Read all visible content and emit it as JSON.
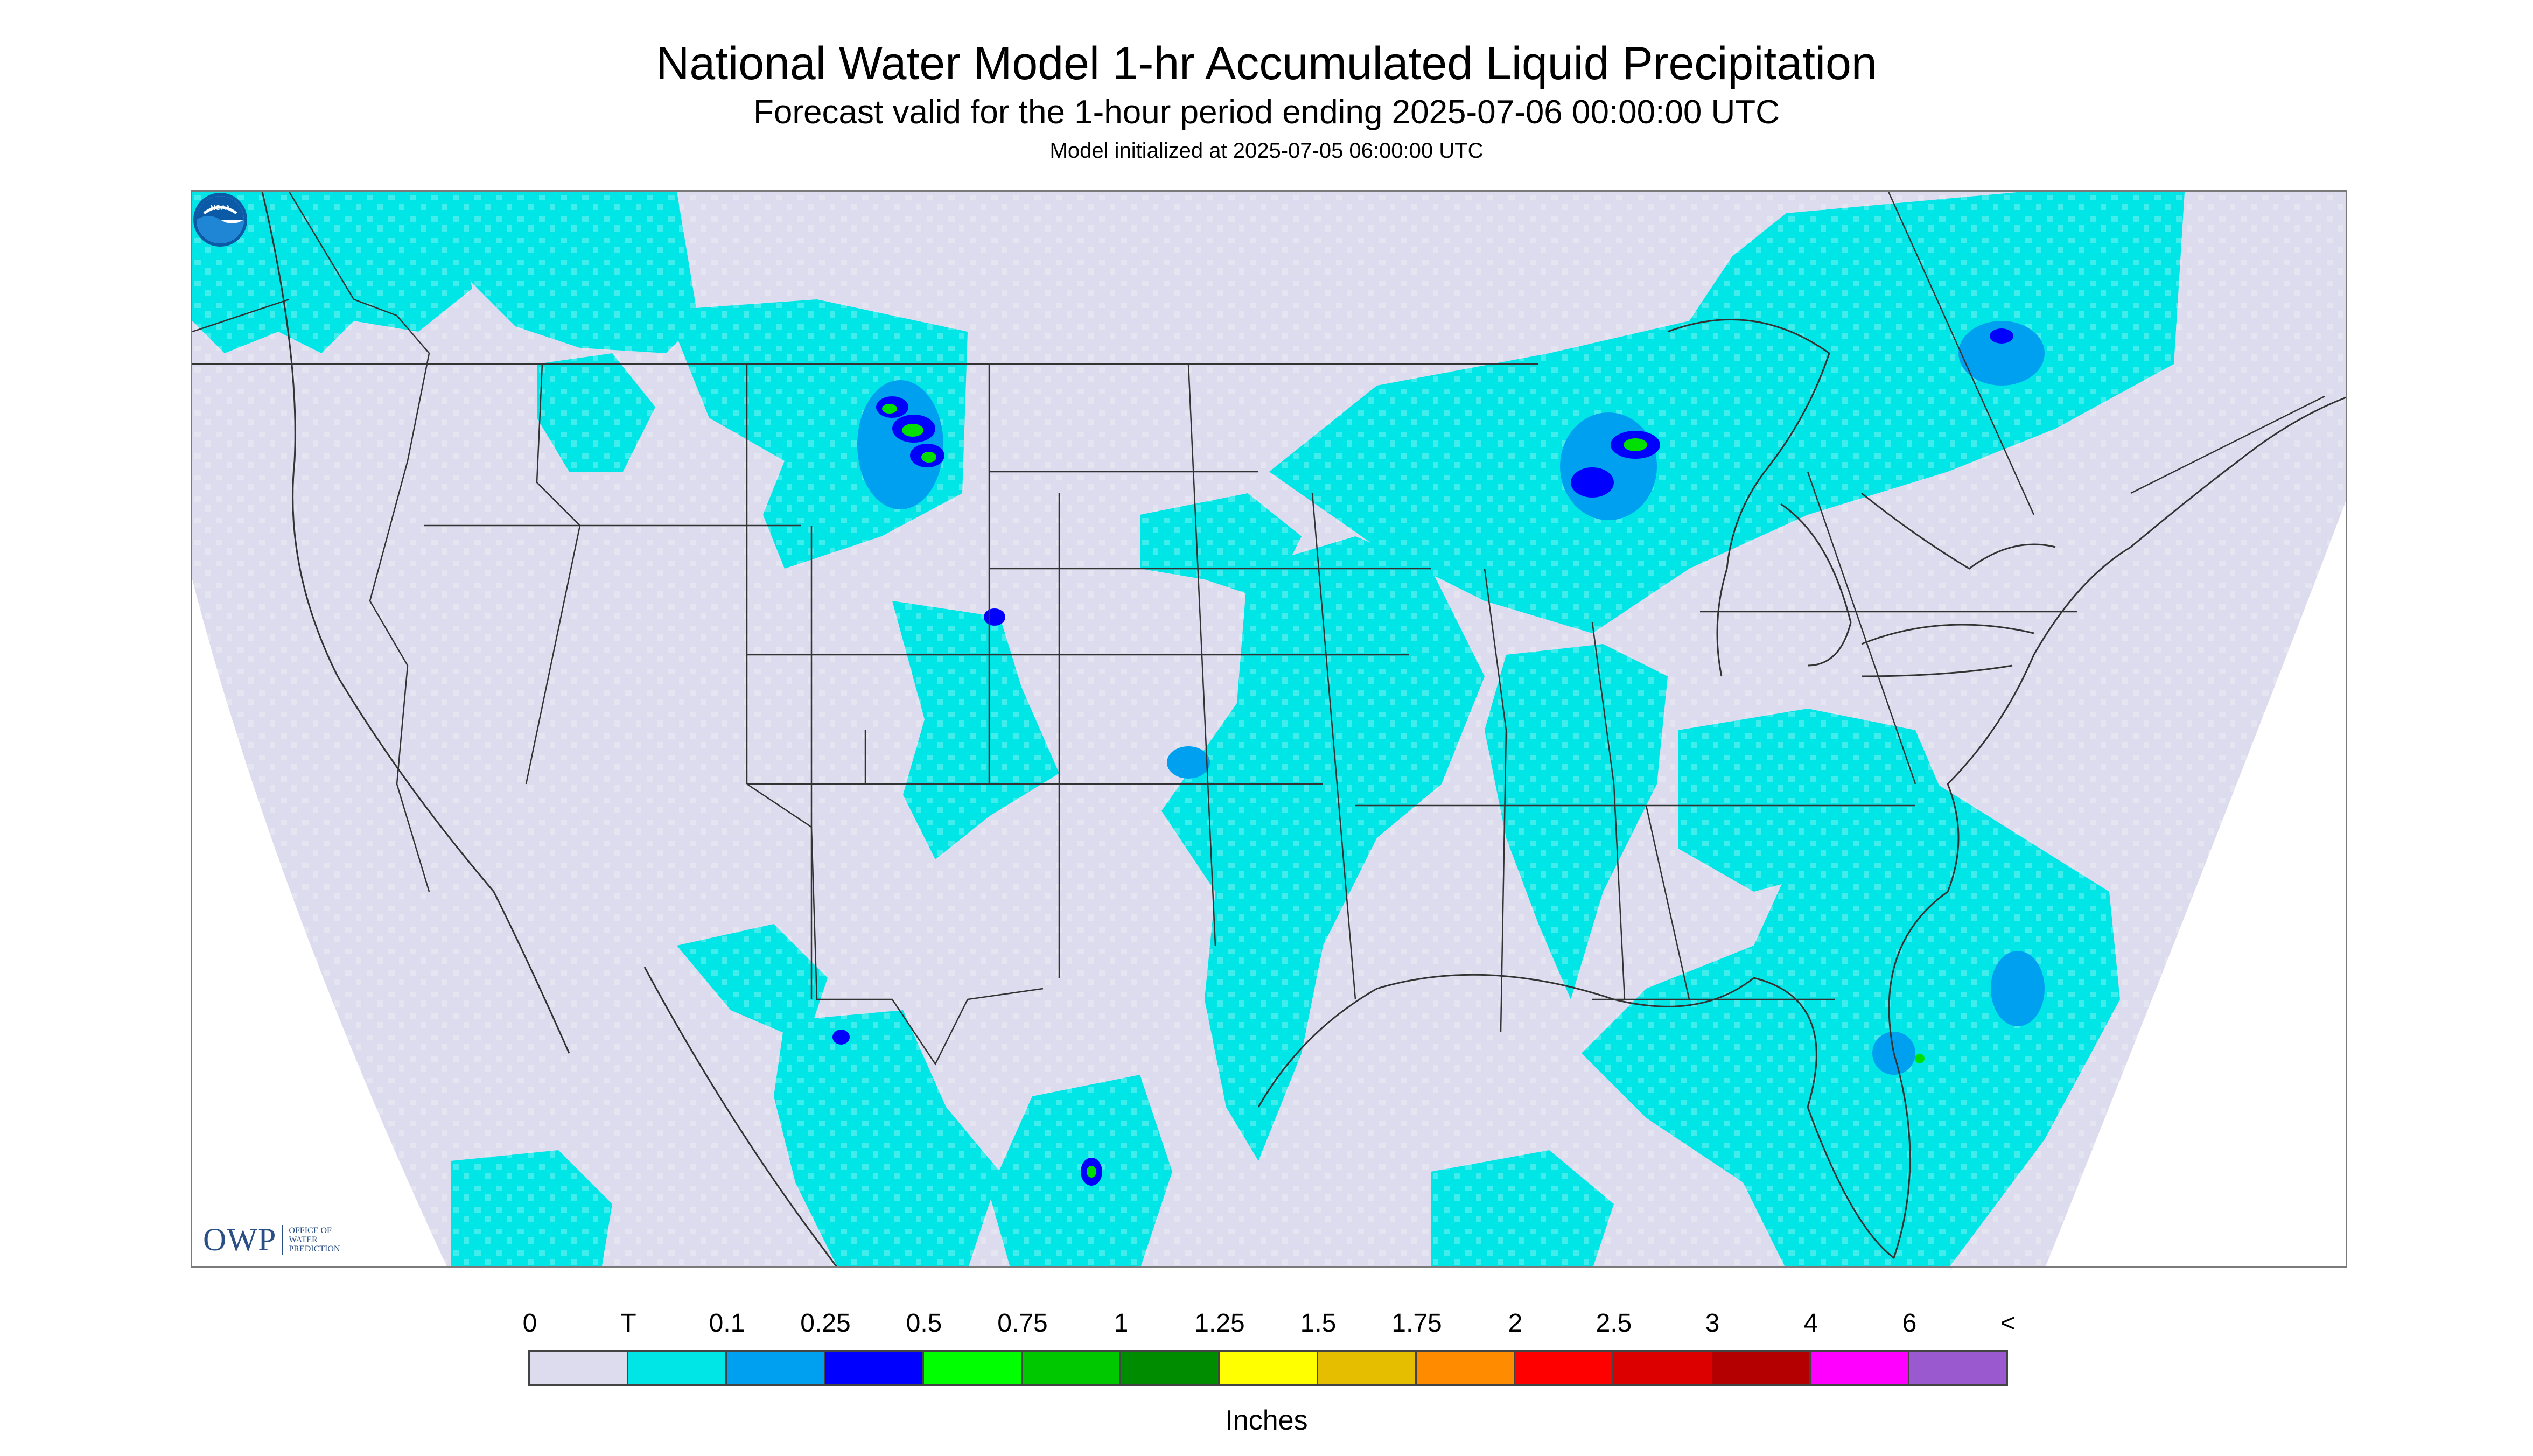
{
  "title": "National Water Model 1-hr Accumulated Liquid Precipitation",
  "subtitle": "Forecast valid for the 1-hour period ending 2025-07-06 00:00:00 UTC",
  "init_line": "Model initialized at 2025-07-05 06:00:00 UTC",
  "owp_logo": {
    "mark": "OWP",
    "lines": [
      "Office of",
      "Water",
      "Prediction"
    ]
  },
  "noaa_logo": {
    "icon": "noaa-emblem-icon",
    "text": "NOAA"
  },
  "map": {
    "domain_color": "#dcdcee",
    "border_color": "#333333",
    "precip_colors": {
      "trace": "#00e5e5",
      "light": "#00a0f0",
      "moderate": "#0000ff",
      "heavy": "#00e000"
    }
  },
  "legend": {
    "ticks": [
      "0",
      "T",
      "0.1",
      "0.25",
      "0.5",
      "0.75",
      "1",
      "1.25",
      "1.5",
      "1.75",
      "2",
      "2.5",
      "3",
      "4",
      "6",
      "<"
    ],
    "colors": [
      "#dcdcee",
      "#00e5e5",
      "#00a0f0",
      "#0000ff",
      "#00ff00",
      "#00c800",
      "#008c00",
      "#ffff00",
      "#e6be00",
      "#ff8c00",
      "#ff0000",
      "#dc0000",
      "#b40000",
      "#ff00ff",
      "#9b59d0"
    ],
    "units": "Inches"
  }
}
